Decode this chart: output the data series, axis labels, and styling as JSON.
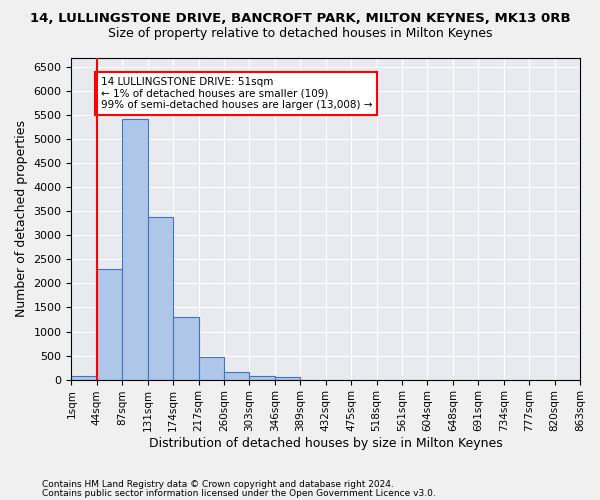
{
  "title": "14, LULLINGSTONE DRIVE, BANCROFT PARK, MILTON KEYNES, MK13 0RB",
  "subtitle": "Size of property relative to detached houses in Milton Keynes",
  "xlabel": "Distribution of detached houses by size in Milton Keynes",
  "ylabel": "Number of detached properties",
  "footnote1": "Contains HM Land Registry data © Crown copyright and database right 2024.",
  "footnote2": "Contains public sector information licensed under the Open Government Licence v3.0.",
  "annotation_title": "14 LULLINGSTONE DRIVE: 51sqm",
  "annotation_line2": "← 1% of detached houses are smaller (109)",
  "annotation_line3": "99% of semi-detached houses are larger (13,008) →",
  "bin_labels": [
    "1sqm",
    "44sqm",
    "87sqm",
    "131sqm",
    "174sqm",
    "217sqm",
    "260sqm",
    "303sqm",
    "346sqm",
    "389sqm",
    "432sqm",
    "475sqm",
    "518sqm",
    "561sqm",
    "604sqm",
    "648sqm",
    "691sqm",
    "734sqm",
    "777sqm",
    "820sqm",
    "863sqm"
  ],
  "bar_values": [
    80,
    2300,
    5420,
    3380,
    1310,
    470,
    155,
    75,
    55,
    0,
    0,
    0,
    0,
    0,
    0,
    0,
    0,
    0,
    0,
    0
  ],
  "bar_color": "#aec6e8",
  "bar_edge_color": "#4472c4",
  "ylim": [
    0,
    6700
  ],
  "yticks": [
    0,
    500,
    1000,
    1500,
    2000,
    2500,
    3000,
    3500,
    4000,
    4500,
    5000,
    5500,
    6000,
    6500
  ],
  "marker_color": "red",
  "plot_background": "#e8eaf0",
  "fig_background": "#f0f0f0"
}
